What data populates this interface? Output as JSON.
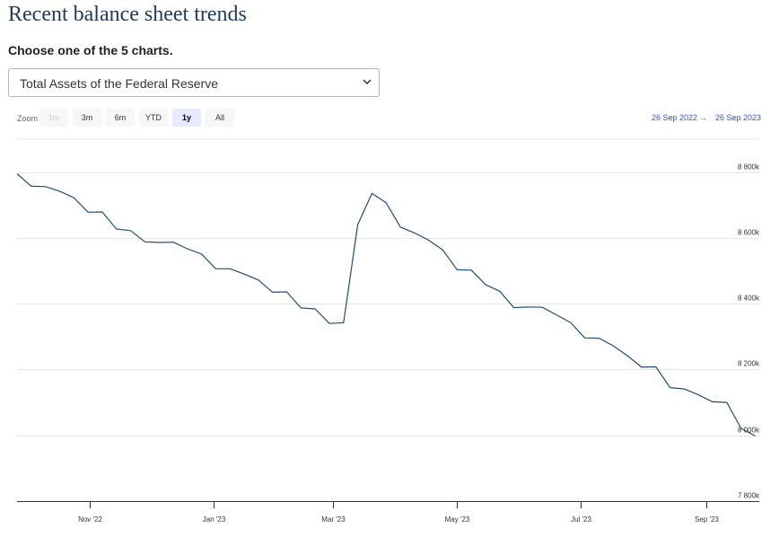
{
  "page": {
    "title": "Recent balance sheet trends"
  },
  "chooser": {
    "label": "Choose one of the 5 charts.",
    "selected": "Total Assets of the Federal Reserve"
  },
  "zoom": {
    "label": "Zoom",
    "buttons": [
      {
        "label": "1m",
        "state": "disabled"
      },
      {
        "label": "3m",
        "state": "normal"
      },
      {
        "label": "6m",
        "state": "normal"
      },
      {
        "label": "YTD",
        "state": "normal"
      },
      {
        "label": "1y",
        "state": "selected"
      },
      {
        "label": "All",
        "state": "normal"
      }
    ]
  },
  "range": {
    "from": "26 Sep 2022",
    "arrow": "→",
    "to": "26 Sep 2023"
  },
  "colors": {
    "line": "#1f4e79",
    "title": "#1f3a5f",
    "range": "#3355cc",
    "grid": "#e6e6e6"
  },
  "chart_data": {
    "type": "line",
    "title": "",
    "xlabel": "",
    "ylabel": "",
    "grid": true,
    "ylim": [
      7800,
      8900
    ],
    "xlim": [
      "2022-09-26",
      "2023-09-27"
    ],
    "y_ticks": [
      {
        "value": 8800,
        "label": "8 800k"
      },
      {
        "value": 8600,
        "label": "8 600k"
      },
      {
        "value": 8400,
        "label": "8 400k"
      },
      {
        "value": 8200,
        "label": "8 200k"
      },
      {
        "value": 8000,
        "label": "8 000k"
      },
      {
        "value": 7800,
        "label": "7 800k"
      }
    ],
    "x_ticks": [
      {
        "date": "2022-11-01",
        "label": "Nov '22"
      },
      {
        "date": "2023-01-01",
        "label": "Jan '23"
      },
      {
        "date": "2023-03-01",
        "label": "Mar '23"
      },
      {
        "date": "2023-05-01",
        "label": "May '23"
      },
      {
        "date": "2023-07-01",
        "label": "Jul '23"
      },
      {
        "date": "2023-09-01",
        "label": "Sep '23"
      }
    ],
    "series": [
      {
        "points": [
          [
            "2022-09-26",
            8795
          ],
          [
            "2022-10-03",
            8757
          ],
          [
            "2022-10-10",
            8756
          ],
          [
            "2022-10-17",
            8742
          ],
          [
            "2022-10-24",
            8722
          ],
          [
            "2022-10-31",
            8678
          ],
          [
            "2022-11-07",
            8679
          ],
          [
            "2022-11-14",
            8627
          ],
          [
            "2022-11-21",
            8622
          ],
          [
            "2022-11-28",
            8588
          ],
          [
            "2022-12-05",
            8586
          ],
          [
            "2022-12-12",
            8587
          ],
          [
            "2022-12-19",
            8567
          ],
          [
            "2022-12-26",
            8551
          ],
          [
            "2023-01-02",
            8506
          ],
          [
            "2023-01-09",
            8506
          ],
          [
            "2023-01-16",
            8490
          ],
          [
            "2023-01-23",
            8472
          ],
          [
            "2023-01-30",
            8435
          ],
          [
            "2023-02-06",
            8436
          ],
          [
            "2023-02-13",
            8387
          ],
          [
            "2023-02-20",
            8384
          ],
          [
            "2023-02-27",
            8340
          ],
          [
            "2023-03-06",
            8342
          ],
          [
            "2023-03-13",
            8640
          ],
          [
            "2023-03-20",
            8735
          ],
          [
            "2023-03-27",
            8707
          ],
          [
            "2023-04-03",
            8633
          ],
          [
            "2023-04-10",
            8615
          ],
          [
            "2023-04-17",
            8593
          ],
          [
            "2023-04-24",
            8563
          ],
          [
            "2023-05-01",
            8503
          ],
          [
            "2023-05-08",
            8502
          ],
          [
            "2023-05-15",
            8458
          ],
          [
            "2023-05-22",
            8438
          ],
          [
            "2023-05-29",
            8388
          ],
          [
            "2023-06-05",
            8390
          ],
          [
            "2023-06-12",
            8389
          ],
          [
            "2023-06-19",
            8366
          ],
          [
            "2023-06-26",
            8342
          ],
          [
            "2023-07-03",
            8296
          ],
          [
            "2023-07-10",
            8295
          ],
          [
            "2023-07-17",
            8272
          ],
          [
            "2023-07-24",
            8242
          ],
          [
            "2023-07-31",
            8207
          ],
          [
            "2023-08-07",
            8208
          ],
          [
            "2023-08-14",
            8145
          ],
          [
            "2023-08-21",
            8141
          ],
          [
            "2023-08-28",
            8123
          ],
          [
            "2023-09-04",
            8102
          ],
          [
            "2023-09-11",
            8100
          ],
          [
            "2023-09-18",
            8021
          ],
          [
            "2023-09-25",
            7998
          ]
        ]
      }
    ]
  }
}
